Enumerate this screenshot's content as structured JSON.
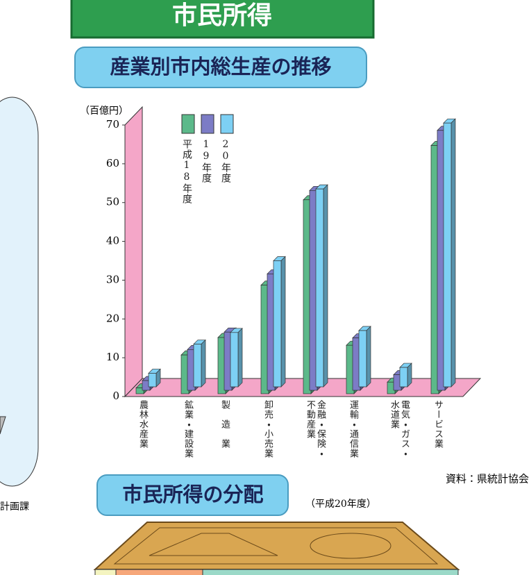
{
  "header": {
    "title": "市民所得"
  },
  "left_note": "計画課",
  "chart_data": {
    "type": "bar3d",
    "title": "産業別市内総生産の推移",
    "ylabel": "（百億円）",
    "categories": [
      "農林水産業",
      "鉱業・建設業",
      "製　造　業",
      "卸売・小売業",
      "金融・保険・不動産業",
      "運輸・通信業",
      "電気・ガス・水道業",
      "サービス業"
    ],
    "series": [
      {
        "name": "平成18年度",
        "color": "#5cb98a",
        "values": [
          1.5,
          10,
          14.5,
          28,
          50,
          12.5,
          3,
          64
        ]
      },
      {
        "name": "19年度",
        "color": "#7c7cc6",
        "values": [
          2.5,
          10.5,
          15,
          30,
          51.5,
          13.5,
          4,
          67
        ]
      },
      {
        "name": "20年度",
        "color": "#7dd0f4",
        "values": [
          3.5,
          11,
          14,
          32.5,
          51,
          14.5,
          5,
          68
        ]
      }
    ],
    "ylim": [
      0,
      70
    ],
    "yticks": [
      0,
      10,
      20,
      30,
      40,
      50,
      60,
      70
    ]
  },
  "source": "資料：県統計協会",
  "distribution": {
    "title": "市民所得の分配",
    "year": "（平成20年度）"
  }
}
